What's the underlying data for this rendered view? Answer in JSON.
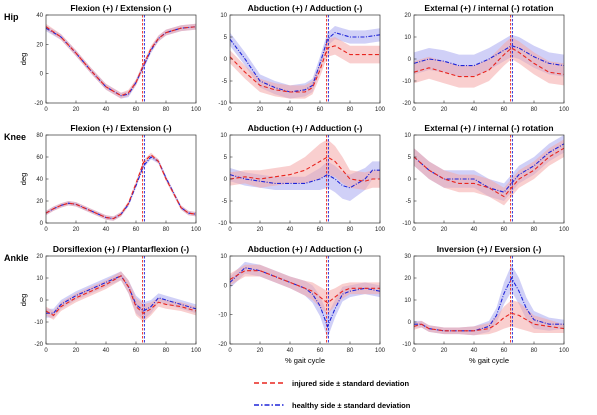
{
  "colors": {
    "injured": "#e8251f",
    "injured_band": "#f4a8a8",
    "healthy": "#1f25d8",
    "healthy_band": "#aaaaf0",
    "toe_off_line": "#9a3fb8"
  },
  "legend": {
    "injured": "injured side ± standard deviation",
    "healthy": "healthy side ± standard deviation"
  },
  "rows": [
    "Hip",
    "Knee",
    "Ankle"
  ],
  "chart_data": [
    {
      "type": "line",
      "row": 0,
      "col": 0,
      "title": "Flexion (+) / Extension (-)",
      "ylabel": "deg",
      "xlabel": "",
      "xlim": [
        0,
        100
      ],
      "ylim": [
        -20,
        40
      ],
      "xticks": [
        0,
        20,
        40,
        60,
        80,
        100
      ],
      "yticks": [
        -20,
        0,
        20,
        40
      ],
      "vline": 65,
      "x": [
        0,
        10,
        20,
        30,
        40,
        50,
        55,
        60,
        65,
        70,
        75,
        80,
        90,
        100
      ],
      "series": [
        {
          "name": "injured",
          "values": [
            32,
            25,
            14,
            2,
            -9,
            -15,
            -13,
            -6,
            6,
            17,
            24,
            28,
            31,
            32
          ],
          "sd": [
            2,
            2,
            2,
            2,
            2,
            2,
            2,
            2,
            2,
            2,
            2,
            2,
            2,
            2
          ]
        },
        {
          "name": "healthy",
          "values": [
            31,
            25,
            14,
            2,
            -9,
            -15,
            -14,
            -6,
            5,
            16,
            24,
            28,
            31,
            32
          ],
          "sd": [
            2,
            2,
            2,
            2,
            2,
            2,
            2,
            2,
            2,
            2,
            2,
            2,
            2,
            2
          ]
        }
      ]
    },
    {
      "type": "line",
      "row": 0,
      "col": 1,
      "title": "Abduction (+) / Adduction (-)",
      "ylabel": "",
      "xlabel": "",
      "xlim": [
        0,
        100
      ],
      "ylim": [
        -10,
        10
      ],
      "xticks": [
        0,
        20,
        40,
        60,
        80,
        100
      ],
      "yticks": [
        -10,
        -5,
        0,
        5,
        10
      ],
      "vline": 65,
      "x": [
        0,
        10,
        20,
        30,
        40,
        50,
        55,
        60,
        65,
        70,
        75,
        80,
        90,
        100
      ],
      "series": [
        {
          "name": "injured",
          "values": [
            0.5,
            -3,
            -6,
            -7,
            -7.5,
            -7.5,
            -6.5,
            -2.5,
            2.5,
            3,
            2,
            1,
            1,
            1
          ],
          "sd": [
            1.5,
            1.5,
            1.5,
            1.5,
            1.5,
            1.5,
            1.5,
            1.5,
            2,
            2,
            2,
            2,
            2,
            2
          ]
        },
        {
          "name": "healthy",
          "values": [
            4.5,
            0,
            -5,
            -6.5,
            -7.5,
            -7,
            -6,
            -1,
            4.5,
            6,
            5.5,
            5,
            5,
            5.5
          ],
          "sd": [
            1.5,
            1.5,
            1.5,
            1.5,
            1.5,
            1.5,
            1.5,
            1.5,
            1.5,
            1.5,
            1.5,
            1.5,
            1.5,
            1.5
          ]
        }
      ]
    },
    {
      "type": "line",
      "row": 0,
      "col": 2,
      "title": "External (+) / internal (-) rotation",
      "ylabel": "",
      "xlabel": "",
      "xlim": [
        0,
        100
      ],
      "ylim": [
        -20,
        20
      ],
      "xticks": [
        0,
        20,
        40,
        60,
        80,
        100
      ],
      "yticks": [
        -20,
        -10,
        0,
        10,
        20
      ],
      "vline": 65,
      "x": [
        0,
        10,
        20,
        30,
        40,
        50,
        60,
        65,
        70,
        80,
        90,
        100
      ],
      "series": [
        {
          "name": "injured",
          "values": [
            -6,
            -4,
            -6,
            -8,
            -8,
            -5,
            2,
            5,
            3,
            -2,
            -6,
            -7
          ],
          "sd": [
            5,
            5,
            5,
            5,
            5,
            5,
            5,
            5,
            5,
            5,
            5,
            5
          ]
        },
        {
          "name": "healthy",
          "values": [
            -2,
            0,
            -1,
            -3,
            -3,
            0,
            4,
            6,
            5,
            1,
            -2,
            -3
          ],
          "sd": [
            5,
            5,
            5,
            5,
            5,
            5,
            5,
            5,
            5,
            5,
            5,
            5
          ]
        }
      ]
    },
    {
      "type": "line",
      "row": 1,
      "col": 0,
      "title": "Flexion (+) / Extension (-)",
      "ylabel": "deg",
      "xlabel": "",
      "xlim": [
        0,
        100
      ],
      "ylim": [
        0,
        80
      ],
      "xticks": [
        0,
        20,
        40,
        60,
        80,
        100
      ],
      "yticks": [
        0,
        20,
        40,
        60,
        80
      ],
      "vline": 65,
      "x": [
        0,
        5,
        10,
        15,
        20,
        30,
        40,
        45,
        50,
        55,
        60,
        65,
        70,
        75,
        80,
        90,
        95,
        100
      ],
      "series": [
        {
          "name": "injured",
          "values": [
            9,
            13,
            16,
            18,
            17,
            11,
            5,
            4,
            8,
            18,
            36,
            55,
            62,
            56,
            40,
            14,
            9,
            8
          ],
          "sd": [
            2,
            2,
            2,
            2,
            2,
            2,
            2,
            2,
            2,
            2,
            2,
            2,
            2,
            2,
            2,
            2,
            2,
            2
          ]
        },
        {
          "name": "healthy",
          "values": [
            9,
            13,
            16,
            18,
            17,
            11,
            5,
            4,
            8,
            17,
            34,
            52,
            60,
            56,
            41,
            14,
            9,
            8
          ],
          "sd": [
            2,
            2,
            2,
            2,
            2,
            2,
            2,
            2,
            2,
            2,
            2,
            2,
            2,
            2,
            2,
            2,
            2,
            2
          ]
        }
      ]
    },
    {
      "type": "line",
      "row": 1,
      "col": 1,
      "title": "Abduction (+) / Adduction (-)",
      "ylabel": "",
      "xlabel": "",
      "xlim": [
        0,
        100
      ],
      "ylim": [
        -10,
        10
      ],
      "xticks": [
        0,
        20,
        40,
        60,
        80,
        100
      ],
      "yticks": [
        -10,
        -5,
        0,
        5,
        10
      ],
      "vline": 65,
      "x": [
        0,
        10,
        20,
        30,
        40,
        50,
        55,
        60,
        65,
        70,
        75,
        80,
        90,
        95,
        100
      ],
      "series": [
        {
          "name": "injured",
          "values": [
            0,
            0.5,
            0,
            0.5,
            1,
            2,
            3,
            4,
            5,
            4,
            2,
            0,
            -0.5,
            0,
            0
          ],
          "sd": [
            1.5,
            1.5,
            2,
            2,
            2,
            3,
            3.5,
            4,
            4,
            3.5,
            3,
            2,
            2,
            2,
            2
          ]
        },
        {
          "name": "healthy",
          "values": [
            1,
            0,
            -0.5,
            -1,
            -1,
            -1,
            -0.5,
            0,
            1,
            0,
            -1.5,
            -2,
            0,
            2,
            2
          ],
          "sd": [
            1.5,
            1.5,
            1.5,
            1.5,
            1.5,
            1.5,
            2,
            2.5,
            3,
            3,
            3,
            3,
            2.5,
            2,
            2
          ]
        }
      ]
    },
    {
      "type": "line",
      "row": 1,
      "col": 2,
      "title": "External (+) / internal (-) rotation",
      "ylabel": "",
      "xlabel": "",
      "xlim": [
        0,
        100
      ],
      "ylim": [
        -10,
        10
      ],
      "xticks": [
        0,
        20,
        40,
        60,
        80,
        100
      ],
      "yticks": [
        -10,
        -5,
        0,
        5,
        10
      ],
      "vline": 65,
      "x": [
        0,
        10,
        20,
        30,
        40,
        50,
        60,
        65,
        70,
        80,
        90,
        100
      ],
      "series": [
        {
          "name": "injured",
          "values": [
            5,
            2,
            0,
            -1,
            -1,
            -2,
            -4,
            -2,
            0,
            2,
            5,
            7
          ],
          "sd": [
            2,
            2,
            2,
            2,
            2,
            2,
            2,
            2,
            2,
            2,
            2,
            2
          ]
        },
        {
          "name": "healthy",
          "values": [
            5,
            2,
            0,
            0,
            0,
            -2,
            -3,
            -1,
            1,
            3,
            6,
            8
          ],
          "sd": [
            2,
            2,
            2,
            2,
            2,
            2,
            2,
            2,
            2,
            2,
            2,
            2
          ]
        }
      ]
    },
    {
      "type": "line",
      "row": 2,
      "col": 0,
      "title": "Dorsiflexion (+) / Plantarflexion (-)",
      "ylabel": "deg",
      "xlabel": "",
      "xlim": [
        0,
        100
      ],
      "ylim": [
        -20,
        20
      ],
      "xticks": [
        0,
        20,
        40,
        60,
        80,
        100
      ],
      "yticks": [
        -20,
        -10,
        0,
        10,
        20
      ],
      "vline": 65,
      "x": [
        0,
        5,
        10,
        20,
        30,
        40,
        50,
        55,
        60,
        65,
        70,
        75,
        80,
        90,
        100
      ],
      "series": [
        {
          "name": "injured",
          "values": [
            -5,
            -7,
            -3,
            1,
            4,
            7,
            11,
            6,
            -3,
            -6,
            -4,
            -1,
            -2,
            -3,
            -5
          ],
          "sd": [
            2,
            2,
            2,
            2,
            2,
            2,
            2,
            3,
            4,
            4,
            3,
            2,
            2,
            2,
            2
          ]
        },
        {
          "name": "healthy",
          "values": [
            -6,
            -6,
            -2,
            2,
            5,
            8,
            11,
            6,
            -2,
            -5,
            -3,
            1,
            0,
            -2,
            -4
          ],
          "sd": [
            2,
            2,
            2,
            2,
            2,
            2,
            2,
            3,
            4,
            4,
            3,
            2,
            2,
            2,
            2
          ]
        }
      ]
    },
    {
      "type": "line",
      "row": 2,
      "col": 1,
      "title": "Abduction (+) / Adduction (-)",
      "ylabel": "",
      "xlabel": "% gait cycle",
      "xlim": [
        0,
        100
      ],
      "ylim": [
        -20,
        10
      ],
      "xticks": [
        0,
        20,
        40,
        60,
        80,
        100
      ],
      "yticks": [
        -20,
        -10,
        0,
        10
      ],
      "vline": 65,
      "x": [
        0,
        10,
        20,
        30,
        40,
        50,
        55,
        60,
        65,
        70,
        75,
        80,
        90,
        100
      ],
      "series": [
        {
          "name": "injured",
          "values": [
            2,
            5,
            5,
            3,
            1,
            -1,
            -2,
            -4,
            -6,
            -4,
            -2,
            -1,
            -1,
            -1
          ],
          "sd": [
            2,
            2,
            2,
            2,
            2,
            2.5,
            3,
            3.5,
            4,
            3,
            2.5,
            2,
            2,
            2
          ]
        },
        {
          "name": "healthy",
          "values": [
            1,
            6,
            5,
            3,
            1,
            -1,
            -3,
            -7,
            -14,
            -8,
            -3,
            -2,
            -1,
            -2
          ],
          "sd": [
            2,
            2,
            2,
            2,
            2,
            2.5,
            3,
            3.5,
            4,
            3,
            2.5,
            2,
            2,
            2
          ]
        }
      ]
    },
    {
      "type": "line",
      "row": 2,
      "col": 2,
      "title": "Inversion (+) / Eversion (-)",
      "ylabel": "",
      "xlabel": "% gait cycle",
      "xlim": [
        0,
        100
      ],
      "ylim": [
        -10,
        30
      ],
      "xticks": [
        0,
        20,
        40,
        60,
        80,
        100
      ],
      "yticks": [
        -10,
        0,
        10,
        20,
        30
      ],
      "vline": 65,
      "x": [
        0,
        5,
        10,
        20,
        30,
        40,
        50,
        55,
        60,
        65,
        70,
        75,
        80,
        90,
        100
      ],
      "series": [
        {
          "name": "injured",
          "values": [
            -2,
            -1,
            -3,
            -4,
            -4,
            -4,
            -3,
            -1,
            2,
            4,
            3,
            1,
            -1,
            -2,
            -3
          ],
          "sd": [
            1.5,
            1.5,
            1.5,
            1.5,
            1.5,
            2,
            2.5,
            3.5,
            5,
            6,
            6,
            5,
            4,
            3,
            2
          ]
        },
        {
          "name": "healthy",
          "values": [
            -1,
            -1,
            -3,
            -4,
            -4,
            -4,
            -2,
            3,
            13,
            20,
            14,
            6,
            1,
            -1,
            -1
          ],
          "sd": [
            1.5,
            1.5,
            1.5,
            1.5,
            1.5,
            2,
            2.5,
            3.5,
            5,
            6,
            6,
            5,
            4,
            3,
            2
          ]
        }
      ]
    }
  ]
}
